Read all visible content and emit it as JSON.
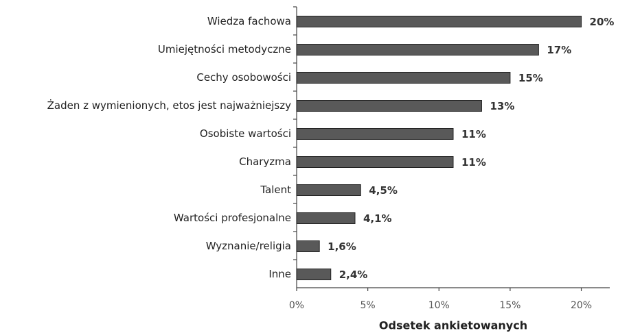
{
  "chart_data": {
    "type": "hbar",
    "xlabel": "Odsetek ankietowanych",
    "categories": [
      "Wiedza fachowa",
      "Umiejętności metodyczne",
      "Cechy osobowości",
      "Żaden z wymienionych, etos jest najważniejszy",
      "Osobiste wartości",
      "Charyzma",
      "Talent",
      "Wartości profesjonalne",
      "Wyznanie/religia",
      "Inne"
    ],
    "values": [
      20,
      17,
      15,
      13,
      11,
      11,
      4.5,
      4.1,
      1.6,
      2.4
    ],
    "value_labels": [
      "20%",
      "17%",
      "15%",
      "13%",
      "11%",
      "11%",
      "4,5%",
      "4,1%",
      "1,6%",
      "2,4%"
    ],
    "color": "#595959",
    "xlim": [
      0,
      22
    ],
    "xticks": [
      {
        "value": 0,
        "label": "0%"
      },
      {
        "value": 5,
        "label": "5%"
      },
      {
        "value": 10,
        "label": "10%"
      },
      {
        "value": 15,
        "label": "15%"
      },
      {
        "value": 20,
        "label": "20%"
      }
    ]
  }
}
